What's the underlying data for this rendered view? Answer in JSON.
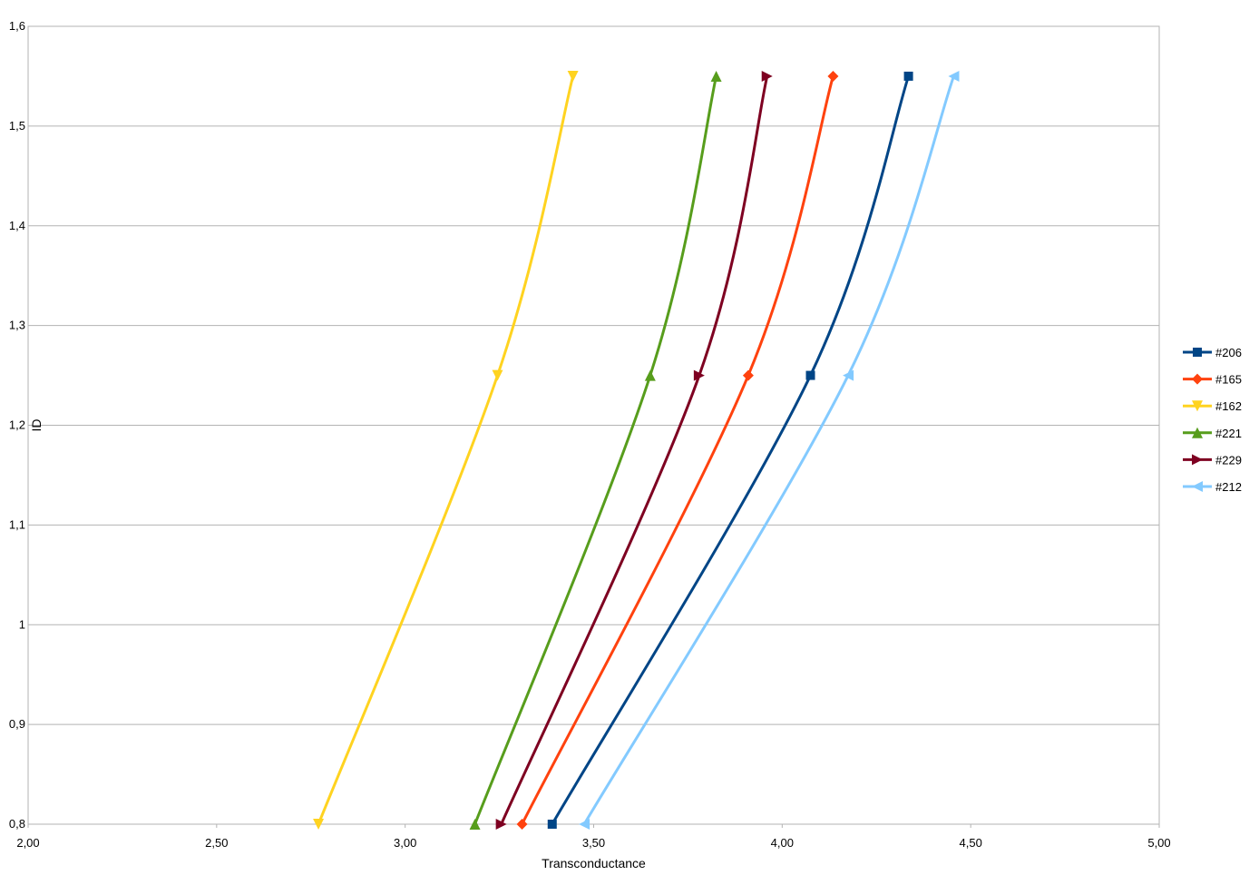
{
  "chart_data": {
    "type": "line",
    "xlabel": "Transconductance",
    "ylabel": "ID",
    "xlim": [
      2.0,
      5.0
    ],
    "ylim": [
      0.8,
      1.6
    ],
    "x_ticks": [
      "2,00",
      "2,50",
      "3,00",
      "3,50",
      "4,00",
      "4,50",
      "5,00"
    ],
    "y_ticks": [
      "0,8",
      "0,9",
      "1",
      "1,1",
      "1,2",
      "1,3",
      "1,4",
      "1,5",
      "1,6"
    ],
    "grid": "horizontal",
    "legend_position": "right",
    "series": [
      {
        "name": "#206",
        "color": "#004586",
        "marker": "square",
        "x": [
          3.39,
          4.075,
          4.335
        ],
        "y": [
          0.8,
          1.25,
          1.55
        ]
      },
      {
        "name": "#165",
        "color": "#ff420e",
        "marker": "diamond",
        "x": [
          3.31,
          3.91,
          4.135
        ],
        "y": [
          0.8,
          1.25,
          1.55
        ]
      },
      {
        "name": "#162",
        "color": "#ffd320",
        "marker": "triangle-down",
        "x": [
          2.77,
          3.245,
          3.445
        ],
        "y": [
          0.8,
          1.25,
          1.55
        ]
      },
      {
        "name": "#221",
        "color": "#579d1c",
        "marker": "triangle-up",
        "x": [
          3.185,
          3.65,
          3.825
        ],
        "y": [
          0.8,
          1.25,
          1.55
        ]
      },
      {
        "name": "#229",
        "color": "#7e0021",
        "marker": "triangle-right",
        "x": [
          3.255,
          3.78,
          3.96
        ],
        "y": [
          0.8,
          1.25,
          1.55
        ]
      },
      {
        "name": "#212",
        "color": "#83caff",
        "marker": "triangle-left",
        "x": [
          3.475,
          4.175,
          4.455
        ],
        "y": [
          0.8,
          1.25,
          1.55
        ]
      }
    ]
  }
}
